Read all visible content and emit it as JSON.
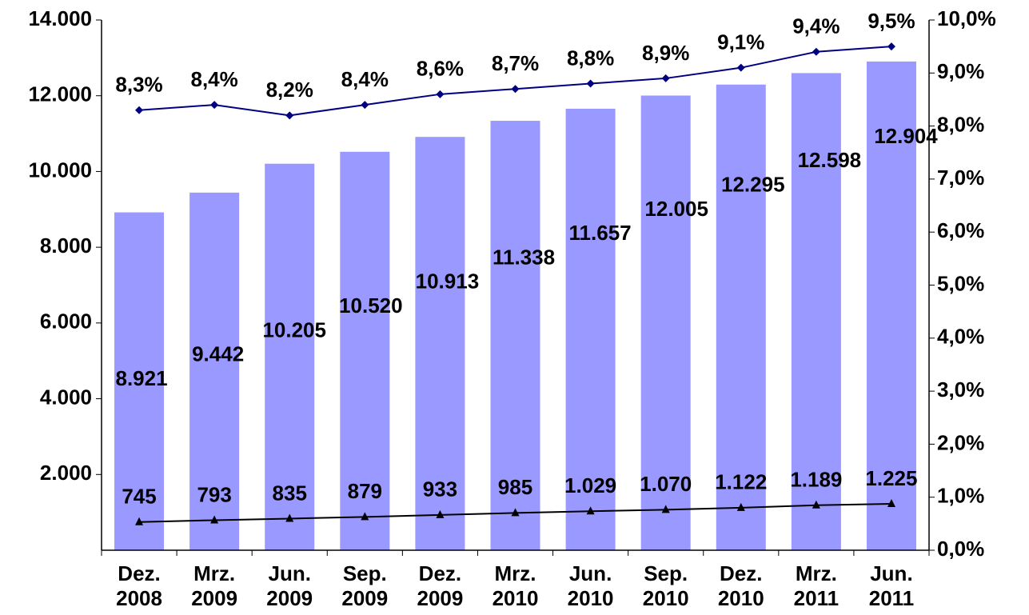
{
  "chart_data": {
    "type": "bar_line",
    "categories": [
      "Dez. 2008",
      "Mrz. 2009",
      "Jun. 2009",
      "Sep. 2009",
      "Dez. 2009",
      "Mrz. 2010",
      "Jun. 2010",
      "Sep. 2010",
      "Dez. 2010",
      "Mrz. 2011",
      "Jun. 2011"
    ],
    "series": [
      {
        "type": "bar",
        "color": "#9999ff",
        "values": [
          8921,
          9442,
          10205,
          10520,
          10913,
          11338,
          11657,
          12005,
          12295,
          12598,
          12904
        ],
        "value_labels": [
          "8.921",
          "9.442",
          "10.205",
          "10.520",
          "10.913",
          "11.338",
          "11.657",
          "12.005",
          "12.295",
          "12.598",
          "12.904"
        ]
      },
      {
        "type": "line",
        "marker": "triangle",
        "color": "#000000",
        "values": [
          745,
          793,
          835,
          879,
          933,
          985,
          1029,
          1070,
          1122,
          1189,
          1225
        ],
        "value_labels": [
          "745",
          "793",
          "835",
          "879",
          "933",
          "985",
          "1.029",
          "1.070",
          "1.122",
          "1.189",
          "1.225"
        ]
      },
      {
        "type": "line",
        "marker": "diamond",
        "axis": "y2",
        "color": "#000080",
        "values": [
          8.3,
          8.4,
          8.2,
          8.4,
          8.6,
          8.7,
          8.8,
          8.9,
          9.1,
          9.4,
          9.5
        ],
        "value_labels": [
          "8,3%",
          "8,4%",
          "8,2%",
          "8,4%",
          "8,6%",
          "8,7%",
          "8,8%",
          "8,9%",
          "9,1%",
          "9,4%",
          "9,5%"
        ]
      }
    ],
    "ylim": [
      0,
      14000
    ],
    "yticks": [
      {
        "value": 2000,
        "label": "2.000"
      },
      {
        "value": 4000,
        "label": "4.000"
      },
      {
        "value": 6000,
        "label": "6.000"
      },
      {
        "value": 8000,
        "label": "8.000"
      },
      {
        "value": 10000,
        "label": "10.000"
      },
      {
        "value": 12000,
        "label": "12.000"
      },
      {
        "value": 14000,
        "label": "14.000"
      }
    ],
    "y2lim": [
      0,
      10
    ],
    "y2ticks": [
      {
        "value": 0,
        "label": "0,0%"
      },
      {
        "value": 1,
        "label": "1,0%"
      },
      {
        "value": 2,
        "label": "2,0%"
      },
      {
        "value": 3,
        "label": "3,0%"
      },
      {
        "value": 4,
        "label": "4,0%"
      },
      {
        "value": 5,
        "label": "5,0%"
      },
      {
        "value": 6,
        "label": "6,0%"
      },
      {
        "value": 7,
        "label": "7,0%"
      },
      {
        "value": 8,
        "label": "8,0%"
      },
      {
        "value": 9,
        "label": "9,0%"
      },
      {
        "value": 10,
        "label": "10,0%"
      }
    ]
  }
}
